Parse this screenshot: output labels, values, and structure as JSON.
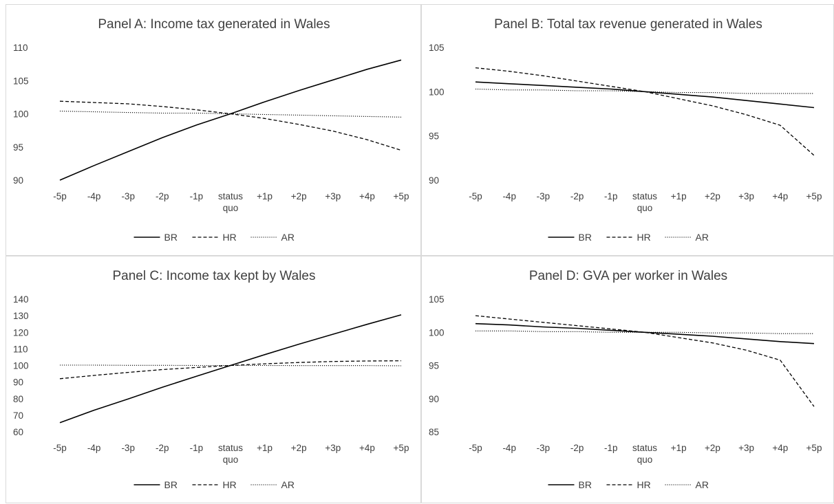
{
  "chart_data": [
    {
      "type": "line",
      "title": "Panel A: Income tax generated in Wales",
      "categories": [
        "-5p",
        "-4p",
        "-3p",
        "-2p",
        "-1p",
        "status quo",
        "+1p",
        "+2p",
        "+3p",
        "+4p",
        "+5p"
      ],
      "ylim": [
        90,
        110
      ],
      "yticks": [
        90,
        95,
        100,
        105,
        110
      ],
      "legend_position": "bottom",
      "series": [
        {
          "name": "BR",
          "style": "solid",
          "values": [
            90.0,
            92.2,
            94.3,
            96.4,
            98.3,
            100.0,
            101.8,
            103.5,
            105.1,
            106.7,
            108.1
          ]
        },
        {
          "name": "HR",
          "style": "dashed",
          "values": [
            101.9,
            101.7,
            101.5,
            101.1,
            100.6,
            100.0,
            99.3,
            98.4,
            97.4,
            96.1,
            94.5
          ]
        },
        {
          "name": "AR",
          "style": "dotted",
          "values": [
            100.4,
            100.3,
            100.2,
            100.1,
            100.1,
            100.0,
            99.9,
            99.8,
            99.7,
            99.6,
            99.5
          ]
        }
      ]
    },
    {
      "type": "line",
      "title": "Panel B: Total tax revenue generated in Wales",
      "categories": [
        "-5p",
        "-4p",
        "-3p",
        "-2p",
        "-1p",
        "status quo",
        "+1p",
        "+2p",
        "+3p",
        "+4p",
        "+5p"
      ],
      "ylim": [
        90,
        105
      ],
      "yticks": [
        90,
        95,
        100,
        105
      ],
      "legend_position": "bottom",
      "series": [
        {
          "name": "BR",
          "style": "solid",
          "values": [
            101.1,
            100.9,
            100.7,
            100.5,
            100.3,
            100.0,
            99.7,
            99.4,
            99.0,
            98.6,
            98.2
          ]
        },
        {
          "name": "HR",
          "style": "dashed",
          "values": [
            102.7,
            102.3,
            101.8,
            101.2,
            100.6,
            100.0,
            99.2,
            98.4,
            97.4,
            96.2,
            92.8
          ]
        },
        {
          "name": "AR",
          "style": "dotted",
          "values": [
            100.3,
            100.2,
            100.2,
            100.1,
            100.1,
            100.0,
            99.9,
            99.9,
            99.8,
            99.8,
            99.8
          ]
        }
      ]
    },
    {
      "type": "line",
      "title": "Panel C: Income tax kept by Wales",
      "categories": [
        "-5p",
        "-4p",
        "-3p",
        "-2p",
        "-1p",
        "status quo",
        "+1p",
        "+2p",
        "+3p",
        "+4p",
        "+5p"
      ],
      "ylim": [
        60,
        140
      ],
      "yticks": [
        60,
        70,
        80,
        90,
        100,
        110,
        120,
        130,
        140
      ],
      "legend_position": "bottom",
      "series": [
        {
          "name": "BR",
          "style": "solid",
          "values": [
            65.5,
            73.0,
            79.8,
            86.8,
            93.5,
            100.0,
            106.5,
            112.8,
            118.8,
            124.8,
            130.5
          ]
        },
        {
          "name": "HR",
          "style": "dashed",
          "values": [
            92.0,
            94.0,
            95.8,
            97.5,
            98.8,
            100.0,
            101.0,
            101.8,
            102.4,
            102.7,
            102.8
          ]
        },
        {
          "name": "AR",
          "style": "dotted",
          "values": [
            100.2,
            100.2,
            100.1,
            100.1,
            100.0,
            100.0,
            100.0,
            99.9,
            99.9,
            99.9,
            99.8
          ]
        }
      ]
    },
    {
      "type": "line",
      "title": "Panel D: GVA per worker in Wales",
      "categories": [
        "-5p",
        "-4p",
        "-3p",
        "-2p",
        "-1p",
        "status quo",
        "+1p",
        "+2p",
        "+3p",
        "+4p",
        "+5p"
      ],
      "ylim": [
        85,
        105
      ],
      "yticks": [
        85,
        90,
        95,
        100,
        105
      ],
      "legend_position": "bottom",
      "series": [
        {
          "name": "BR",
          "style": "solid",
          "values": [
            101.3,
            101.1,
            100.8,
            100.6,
            100.3,
            100.0,
            99.7,
            99.4,
            99.0,
            98.6,
            98.3
          ]
        },
        {
          "name": "HR",
          "style": "dashed",
          "values": [
            102.5,
            102.0,
            101.5,
            101.0,
            100.5,
            100.0,
            99.2,
            98.4,
            97.3,
            95.8,
            88.8
          ]
        },
        {
          "name": "AR",
          "style": "dotted",
          "values": [
            100.2,
            100.2,
            100.1,
            100.1,
            100.0,
            100.0,
            100.0,
            99.9,
            99.9,
            99.8,
            99.8
          ]
        }
      ]
    }
  ]
}
